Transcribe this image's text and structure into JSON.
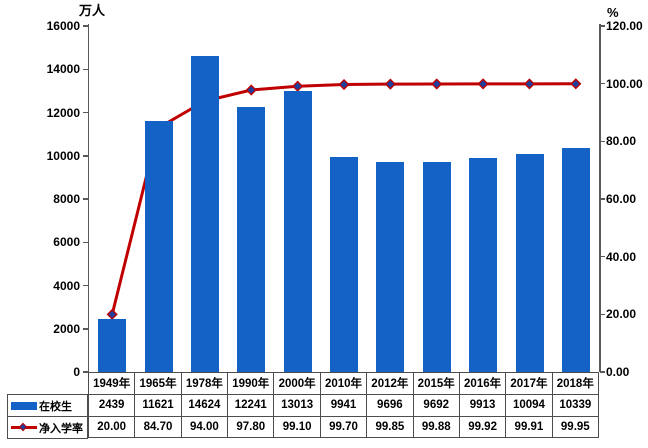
{
  "chart_data": {
    "type": "bar+line",
    "categories": [
      "1949年",
      "1965年",
      "1978年",
      "1990年",
      "2000年",
      "2010年",
      "2012年",
      "2015年",
      "2016年",
      "2017年",
      "2018年"
    ],
    "series": [
      {
        "name": "在校生",
        "type": "bar",
        "axis": "left",
        "color": "#1562c7",
        "values": [
          2439,
          11621,
          14624,
          12241,
          13013,
          9941,
          9696,
          9692,
          9913,
          10094,
          10339
        ]
      },
      {
        "name": "净入学率",
        "type": "line",
        "axis": "right",
        "color": "#c00000",
        "marker": "diamond",
        "marker_fill": "#1f3f9e",
        "values": [
          20.0,
          84.7,
          94.0,
          97.8,
          99.1,
          99.7,
          99.85,
          99.88,
          99.92,
          99.91,
          99.95
        ]
      }
    ],
    "left_axis": {
      "title": "万人",
      "min": 0,
      "max": 16000,
      "step": 2000,
      "ticks": [
        "16000",
        "14000",
        "12000",
        "10000",
        "8000",
        "6000",
        "4000",
        "2000",
        "0"
      ]
    },
    "right_axis": {
      "title": "%",
      "min": 0,
      "max": 120,
      "step": 20,
      "ticks": [
        "120.00",
        "100.00",
        "80.00",
        "60.00",
        "40.00",
        "20.00",
        "0.00"
      ]
    },
    "grid": false,
    "legend_position": "table-left-bottom",
    "table": {
      "enrollment_labels": [
        "2439",
        "11621",
        "14624",
        "12241",
        "13013",
        "9941",
        "9696",
        "9692",
        "9913",
        "10094",
        "10339"
      ],
      "rate_labels": [
        "20.00",
        "84.70",
        "94.00",
        "97.80",
        "99.10",
        "99.70",
        "99.85",
        "99.88",
        "99.92",
        "99.91",
        "99.95"
      ]
    }
  }
}
